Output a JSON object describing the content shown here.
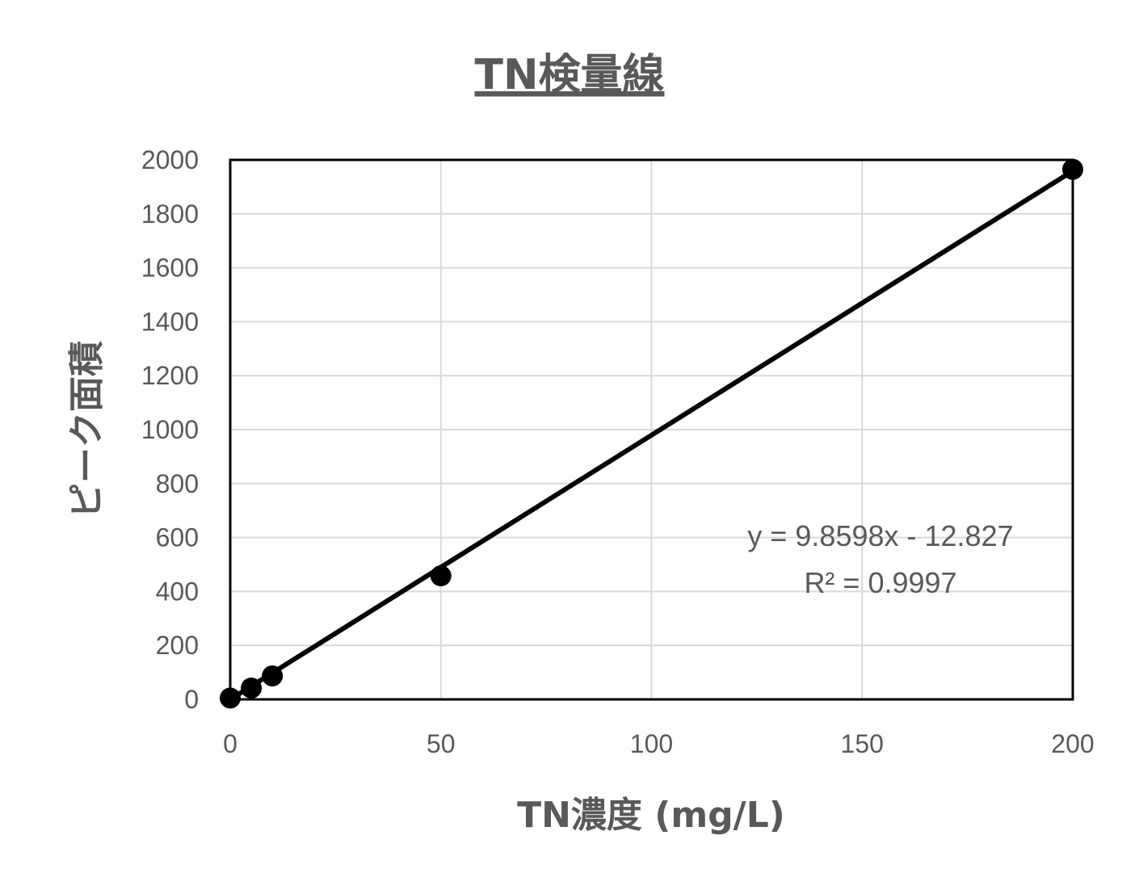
{
  "chart_data": {
    "type": "scatter",
    "title": "TN検量線",
    "xlabel": "TN濃度 (mg/L)",
    "ylabel": "ピーク面積",
    "xlim": [
      0,
      200
    ],
    "ylim": [
      0,
      2000
    ],
    "xticks": [
      0,
      50,
      100,
      150,
      200
    ],
    "yticks": [
      0,
      200,
      400,
      600,
      800,
      1000,
      1200,
      1400,
      1600,
      1800,
      2000
    ],
    "grid": true,
    "series": [
      {
        "points": [
          {
            "x": 0,
            "y": 5
          },
          {
            "x": 5,
            "y": 42
          },
          {
            "x": 10,
            "y": 87
          },
          {
            "x": 50,
            "y": 458
          },
          {
            "x": 200,
            "y": 1965
          }
        ],
        "color": "#000000"
      }
    ],
    "trendline": {
      "type": "linear",
      "slope": 9.8598,
      "intercept": -12.827,
      "equation": "y = 9.8598x - 12.827",
      "r2_label": "R² = 0.9997",
      "color": "#000000"
    }
  }
}
